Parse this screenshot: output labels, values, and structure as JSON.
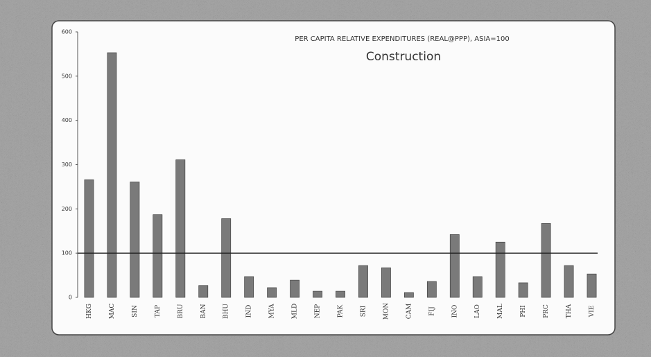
{
  "chart_data": {
    "type": "bar",
    "title": "PER CAPITA RELATIVE EXPENDITURES (REAL@PPP), ASIA=100",
    "subtitle": "Construction",
    "categories": [
      "HKG",
      "MAC",
      "SIN",
      "TAP",
      "BRU",
      "BAN",
      "BHU",
      "IND",
      "MYA",
      "MLD",
      "NEP",
      "PAK",
      "SRI",
      "MON",
      "CAM",
      "FIJ",
      "INO",
      "LAO",
      "MAL",
      "PHI",
      "PRC",
      "THA",
      "VIE"
    ],
    "values": [
      266,
      553,
      261,
      187,
      311,
      27,
      178,
      47,
      22,
      39,
      14,
      14,
      72,
      67,
      11,
      36,
      142,
      47,
      125,
      33,
      167,
      72,
      53
    ],
    "color": "#7a7a7a",
    "reference_line": 100,
    "ylim": [
      0,
      600
    ],
    "yticks": [
      0,
      100,
      200,
      300,
      400,
      500,
      600
    ],
    "grid": false
  }
}
